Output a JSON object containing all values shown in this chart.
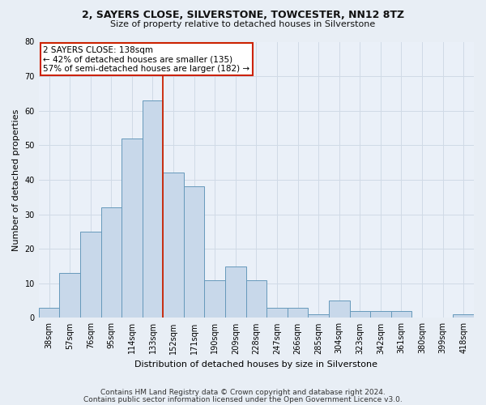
{
  "title": "2, SAYERS CLOSE, SILVERSTONE, TOWCESTER, NN12 8TZ",
  "subtitle": "Size of property relative to detached houses in Silverstone",
  "xlabel": "Distribution of detached houses by size in Silverstone",
  "ylabel": "Number of detached properties",
  "categories": [
    "38sqm",
    "57sqm",
    "76sqm",
    "95sqm",
    "114sqm",
    "133sqm",
    "152sqm",
    "171sqm",
    "190sqm",
    "209sqm",
    "228sqm",
    "247sqm",
    "266sqm",
    "285sqm",
    "304sqm",
    "323sqm",
    "342sqm",
    "361sqm",
    "380sqm",
    "399sqm",
    "418sqm"
  ],
  "values": [
    3,
    13,
    25,
    32,
    52,
    63,
    42,
    38,
    11,
    15,
    11,
    3,
    3,
    1,
    5,
    2,
    2,
    2,
    0,
    0,
    1
  ],
  "bar_color": "#c8d8ea",
  "bar_edge_color": "#6699bb",
  "red_line_index": 5.5,
  "annotation_line1": "2 SAYERS CLOSE: 138sqm",
  "annotation_line2": "← 42% of detached houses are smaller (135)",
  "annotation_line3": "57% of semi-detached houses are larger (182) →",
  "annotation_box_color": "#ffffff",
  "annotation_edge_color": "#cc2200",
  "ylim": [
    0,
    80
  ],
  "yticks": [
    0,
    10,
    20,
    30,
    40,
    50,
    60,
    70,
    80
  ],
  "footer1": "Contains HM Land Registry data © Crown copyright and database right 2024.",
  "footer2": "Contains public sector information licensed under the Open Government Licence v3.0.",
  "bg_color": "#e8eef5",
  "plot_bg_color": "#eaf0f8",
  "grid_color": "#d0dae6",
  "title_fontsize": 9,
  "subtitle_fontsize": 8,
  "tick_fontsize": 7,
  "ylabel_fontsize": 8,
  "xlabel_fontsize": 8,
  "footer_fontsize": 6.5
}
